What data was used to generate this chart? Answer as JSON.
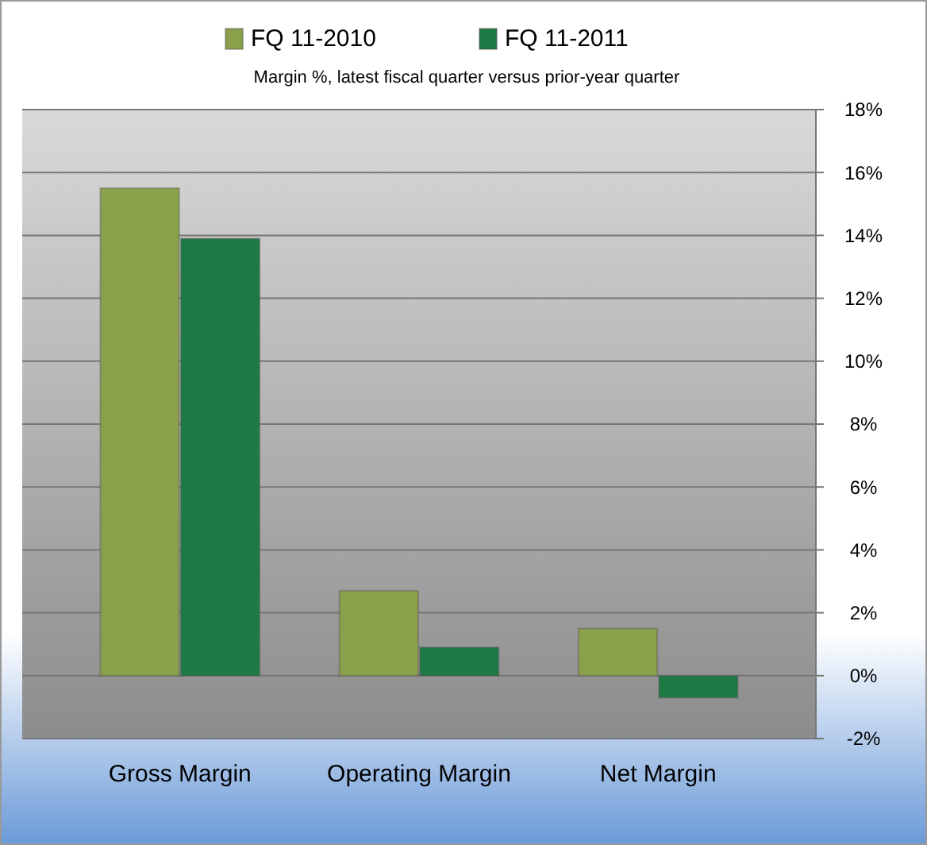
{
  "chart_data": {
    "type": "bar",
    "title": "Margin %,  latest fiscal quarter versus prior-year quarter",
    "categories": [
      "Gross Margin",
      "Operating Margin",
      "Net Margin"
    ],
    "series": [
      {
        "name": "FQ 11-2010",
        "color": "#8aa04a",
        "values": [
          15.5,
          2.7,
          1.5
        ]
      },
      {
        "name": "FQ 11-2011",
        "color": "#1e7a45",
        "values": [
          13.9,
          0.9,
          -0.7
        ]
      }
    ],
    "ylim": [
      -2,
      18
    ],
    "yticks": [
      {
        "value": -2,
        "label": "-2%"
      },
      {
        "value": 0,
        "label": "0%"
      },
      {
        "value": 2,
        "label": "2%"
      },
      {
        "value": 4,
        "label": "4%"
      },
      {
        "value": 6,
        "label": "6%"
      },
      {
        "value": 8,
        "label": "8%"
      },
      {
        "value": 10,
        "label": "10%"
      },
      {
        "value": 12,
        "label": "12%"
      },
      {
        "value": 14,
        "label": "14%"
      },
      {
        "value": 16,
        "label": "16%"
      },
      {
        "value": 18,
        "label": "18%"
      }
    ],
    "grid": true,
    "legend": "top"
  }
}
